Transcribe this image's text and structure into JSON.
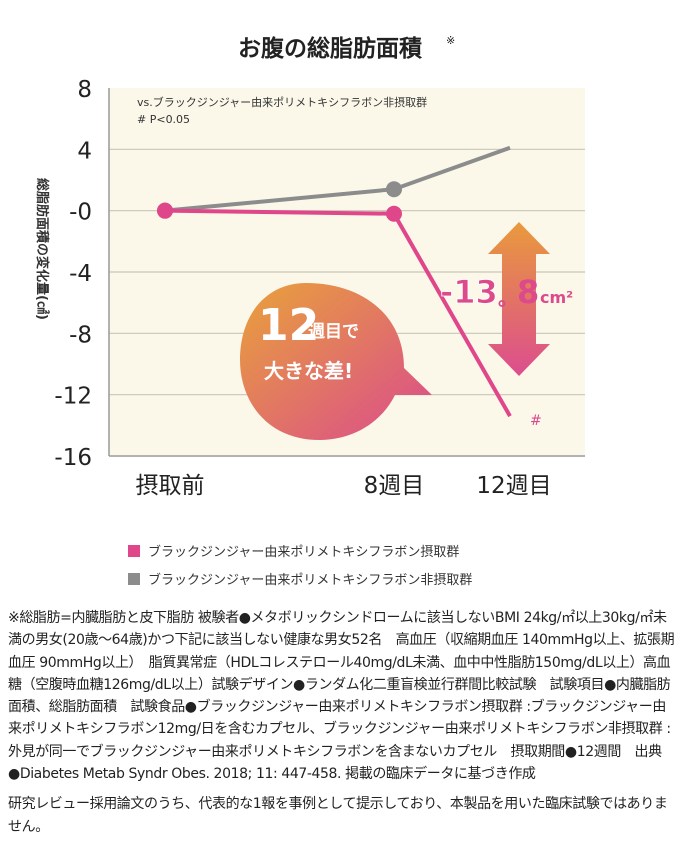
{
  "chart_data": {
    "type": "line",
    "title": "お腹の総脂肪面積",
    "title_mark": "※",
    "ylabel": "総脂肪面積の変化量(㎠)",
    "ylim": [
      -16,
      8
    ],
    "yticks": [
      8,
      4,
      0,
      -4,
      -8,
      -12,
      -16
    ],
    "ytick_labels": [
      "8",
      "4",
      "-0",
      "-4",
      "-8",
      "-12",
      "-16"
    ],
    "categories": [
      "摂取前",
      "8週目",
      "12週目"
    ],
    "grid": true,
    "series": [
      {
        "name": "ブラックジンジャー由来ポリメトキシフラボン摂取群",
        "color": "#e0468a",
        "values": [
          0,
          -0.2,
          -13.4
        ]
      },
      {
        "name": "ブラックジンジャー由来ポリメトキシフラボン非摂取群",
        "color": "#8c8c8c",
        "values": [
          0,
          1.4,
          4.1
        ]
      }
    ],
    "annotations": {
      "note_line1": "vs.ブラックジンジャー由来ポリメトキシフラボン非摂取群",
      "note_line2": "# P<0.05",
      "significance": "#",
      "difference_value": "-13",
      "difference_dot": "。",
      "difference_decimal": "8",
      "difference_unit": "cm²",
      "bubble_number": "12",
      "bubble_text1": "週目で",
      "bubble_text2": "大きな差!"
    },
    "legend_position": "bottom"
  },
  "colors": {
    "plot_bg": "#fbf8ea",
    "pink": "#e0468a",
    "gray": "#8c8c8c",
    "orange": "#e99a3c"
  },
  "notes": {
    "body": "※総脂肪=内臓脂肪と皮下脂肪 被験者●メタボリックシンドロームに該当しないBMI 24kg/㎡以上30kg/㎡未満の男女(20歳～64歳)かつ下記に該当しない健康な男女52名　高血圧（収縮期血圧 140mmHg以上、拡張期血圧 90mmHg以上）　脂質異常症（HDLコレステロール40mg/dL未満、血中中性脂肪150mg/dL以上）高血糖（空腹時血糖126mg/dL以上）試験デザイン●ランダム化二重盲検並行群間比較試験　試験項目●内臓脂肪面積、総脂肪面積　試験食品●ブラックジンジャー由来ポリメトキシフラボン摂取群 :ブラックジンジャー由来ポリメトキシフラボン12mg/日を含むカプセル、ブラックジンジャー由来ポリメトキシフラボン非摂取群 :外見が同一でブラックジンジャー由来ポリメトキシフラボンを含まないカプセル　摂取期間●12週間　出典●Diabetes Metab Syndr Obes. 2018; 11: 447-458. 掲載の臨床データに基づき作成",
    "disclaimer": "研究レビュー採用論文のうち、代表的な1報を事例として提示しており、本製品を用いた臨床試験ではありません。"
  }
}
